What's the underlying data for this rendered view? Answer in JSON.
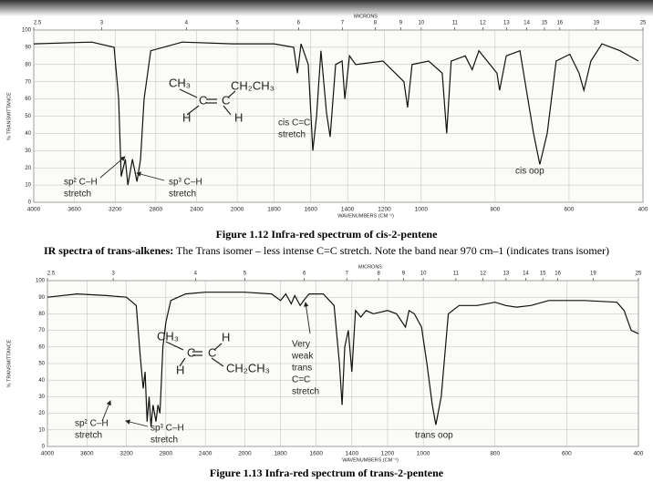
{
  "chart_data": [
    {
      "type": "line",
      "caption": "Figure 1.12 Infra-red spectrum of cis-2-pentene",
      "xlabel": "WAVENUMBERS (CM⁻¹)",
      "ylabel": "% TRANSMITTANCE",
      "x2label": "MICRONS",
      "xlim": [
        4000,
        400
      ],
      "xscale_breaks": [
        2000,
        1000
      ],
      "ylim": [
        0,
        100
      ],
      "xticks": [
        4000,
        3600,
        3200,
        2800,
        2400,
        2000,
        1800,
        1600,
        1400,
        1200,
        1000,
        800,
        600,
        400
      ],
      "x2ticks": [
        2.5,
        3,
        4,
        5,
        6,
        7,
        8,
        9,
        10,
        11,
        12,
        13,
        14,
        15,
        16,
        19,
        25
      ],
      "yticks": [
        0,
        10,
        20,
        30,
        40,
        50,
        60,
        70,
        80,
        90,
        100
      ],
      "grid": true,
      "color": "#111111",
      "x": [
        4000,
        3430,
        3210,
        3165,
        3140,
        3100,
        3075,
        3030,
        2985,
        2950,
        2915,
        2850,
        2540,
        2045,
        1800,
        1693,
        1673,
        1653,
        1614,
        1589,
        1569,
        1545,
        1515,
        1495,
        1465,
        1430,
        1415,
        1390,
        1356,
        1208,
        1094,
        1074,
        1050,
        980,
        943,
        931,
        919,
        881,
        862,
        844,
        795,
        788,
        770,
        733,
        696,
        679,
        659,
        635,
        598,
        573,
        560,
        541,
        511,
        462,
        412
      ],
      "values": [
        92,
        93,
        90,
        60,
        15,
        25,
        10,
        25,
        12,
        25,
        60,
        88,
        93,
        92,
        92,
        90,
        75,
        92,
        80,
        30,
        50,
        88,
        52,
        38,
        80,
        82,
        60,
        85,
        80,
        82,
        70,
        55,
        80,
        82,
        75,
        40,
        82,
        85,
        77,
        88,
        75,
        65,
        85,
        88,
        40,
        22,
        40,
        82,
        86,
        75,
        65,
        82,
        92,
        88,
        82
      ],
      "structure": [
        "CH₃",
        "C",
        "C",
        "CH₂CH₃",
        "H",
        "H"
      ],
      "annotations": [
        {
          "lines": [
            "sp² C–H",
            "stretch"
          ]
        },
        {
          "lines": [
            "sp³ C–H",
            "stretch"
          ]
        },
        {
          "lines": [
            "cis C=C",
            "stretch"
          ]
        },
        {
          "lines": [
            "cis oop"
          ]
        }
      ]
    },
    {
      "type": "line",
      "caption": "Figure 1.13 Infra-red spectrum of trans-2-pentene",
      "xlabel": "WAVENUMBERS (CM⁻¹)",
      "ylabel": "% TRANSMITTANCE",
      "x2label": "MICRONS",
      "xlim": [
        4000,
        400
      ],
      "xscale_breaks": [
        2000,
        1000
      ],
      "ylim": [
        0,
        100
      ],
      "xticks": [
        4000,
        3600,
        3200,
        2800,
        2400,
        2000,
        1800,
        1600,
        1400,
        1200,
        1000,
        800,
        600,
        400
      ],
      "x2ticks": [
        2.5,
        3,
        4,
        5,
        6,
        7,
        8,
        9,
        10,
        11,
        12,
        13,
        14,
        15,
        16,
        19,
        25
      ],
      "yticks": [
        0,
        10,
        20,
        30,
        40,
        50,
        60,
        70,
        80,
        90,
        100
      ],
      "grid": true,
      "color": "#111111",
      "x": [
        4000,
        3700,
        3400,
        3200,
        3100,
        3060,
        3030,
        3010,
        2990,
        2970,
        2950,
        2930,
        2900,
        2880,
        2860,
        2830,
        2800,
        2750,
        2600,
        2400,
        2000,
        1850,
        1800,
        1770,
        1740,
        1720,
        1690,
        1670,
        1640,
        1560,
        1500,
        1470,
        1455,
        1440,
        1420,
        1400,
        1380,
        1350,
        1320,
        1280,
        1200,
        1150,
        1100,
        1080,
        1050,
        1010,
        990,
        975,
        965,
        950,
        930,
        900,
        850,
        800,
        770,
        740,
        700,
        650,
        550,
        460,
        440,
        420,
        400
      ],
      "values": [
        90,
        92,
        91,
        90,
        85,
        55,
        35,
        45,
        15,
        30,
        12,
        25,
        15,
        25,
        20,
        60,
        75,
        88,
        92,
        93,
        93,
        92,
        88,
        92,
        86,
        91,
        85,
        88,
        92,
        92,
        85,
        50,
        25,
        60,
        70,
        45,
        82,
        78,
        82,
        80,
        82,
        80,
        72,
        82,
        80,
        72,
        50,
        25,
        13,
        30,
        80,
        85,
        85,
        87,
        85,
        84,
        85,
        88,
        88,
        87,
        82,
        70,
        68
      ],
      "structure": [
        "CH₃",
        "C",
        "C",
        "H",
        "H",
        "CH₂CH₃"
      ],
      "annotations": [
        {
          "lines": [
            "sp² C–H",
            "stretch"
          ]
        },
        {
          "lines": [
            "sp³ C–H",
            "stretch"
          ]
        },
        {
          "lines": [
            "Very",
            "weak",
            "trans",
            "C=C",
            "stretch"
          ]
        },
        {
          "lines": [
            "trans oop"
          ]
        }
      ]
    }
  ],
  "document": {
    "paragraph_bold": "IR spectra of trans-alkenes:",
    "paragraph": " The Trans isomer – less intense C=C stretch. Note the band near 970 cm–1 (indicates trans isomer)"
  }
}
